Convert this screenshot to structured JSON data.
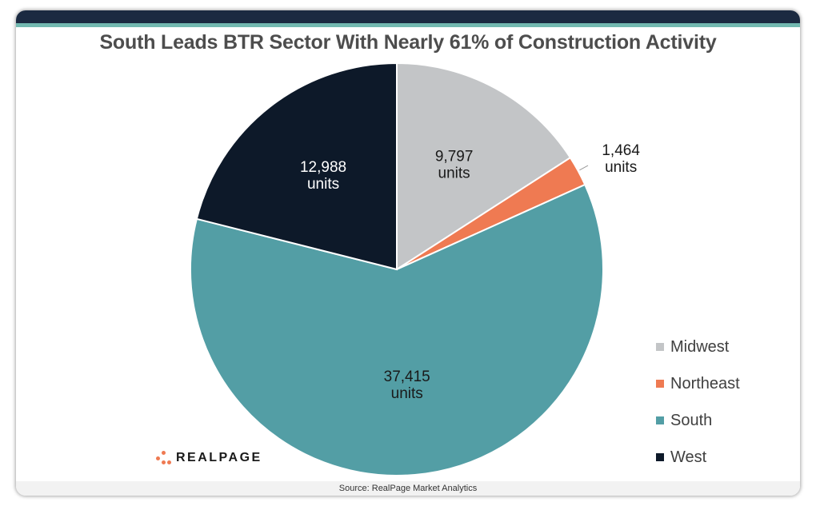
{
  "chart_data": {
    "type": "pie",
    "title": "South Leads BTR Sector With Nearly 61% of Construction Activity",
    "unit": "units",
    "slices": [
      {
        "name": "Midwest",
        "value": 9797,
        "label": "9,797",
        "color": "#c3c5c7"
      },
      {
        "name": "Northeast",
        "value": 1464,
        "label": "1,464",
        "color": "#ef7a52"
      },
      {
        "name": "South",
        "value": 37415,
        "label": "37,415",
        "color": "#539ea5"
      },
      {
        "name": "West",
        "value": 12988,
        "label": "12,988",
        "color": "#0d1929"
      }
    ],
    "legend_position": "right"
  },
  "brand": {
    "logo_text": "REALPAGE"
  },
  "footer": {
    "source": "Source: RealPage Market Analytics"
  }
}
